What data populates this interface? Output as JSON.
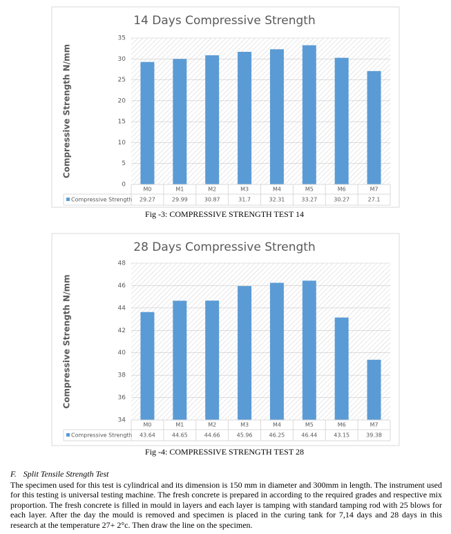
{
  "chart_data": [
    {
      "type": "bar",
      "title": "14 Days Compressive Strength",
      "y_label": "Compressive Strength N/mm",
      "categories": [
        "M0",
        "M1",
        "M2",
        "M3",
        "M4",
        "M5",
        "M6",
        "M7"
      ],
      "series": [
        {
          "name": "Compressive Strength",
          "color": "#5b9bd5",
          "values": [
            29.27,
            29.99,
            30.87,
            31.7,
            32.31,
            33.27,
            30.27,
            27.1
          ]
        }
      ],
      "ylim": [
        0,
        35
      ],
      "yticks": [
        0,
        5,
        10,
        15,
        20,
        25,
        30,
        35
      ],
      "grid": true
    },
    {
      "type": "bar",
      "title": "28 Days Compressive Strength",
      "y_label": "Compressive Strength N/mm",
      "categories": [
        "M0",
        "M1",
        "M2",
        "M3",
        "M4",
        "M5",
        "M6",
        "M7"
      ],
      "series": [
        {
          "name": "Compressive Strength",
          "color": "#5b9bd5",
          "values": [
            43.64,
            44.65,
            44.66,
            45.96,
            46.25,
            46.44,
            43.15,
            39.38
          ]
        }
      ],
      "ylim": [
        34,
        48
      ],
      "yticks": [
        34,
        36,
        38,
        40,
        42,
        44,
        46,
        48
      ],
      "grid": true
    }
  ],
  "captions": [
    "Fig -3:   COMPRESSIVE STRENGTH TEST 14",
    "Fig -4:   COMPRESSIVE STRENGTH TEST 28"
  ],
  "section": {
    "number": "F.",
    "heading": "Split Tensile Strength Test",
    "paragraph": "The specimen used for this test is cylindrical and its dimension is 150 mm in diameter and 300mm in length. The instrument used for this testing is universal testing machine. The fresh concrete is prepared in according to the required grades and respective mix proportion. The fresh concrete is filled in mould in layers and each layer is tamping with standard tamping rod with 25 blows for each layer. After the day the mould is removed and specimen is placed in the curing tank for 7,14 days and 28 days in this research at the temperature 27+ 2°c. Then draw the line on the specimen."
  }
}
